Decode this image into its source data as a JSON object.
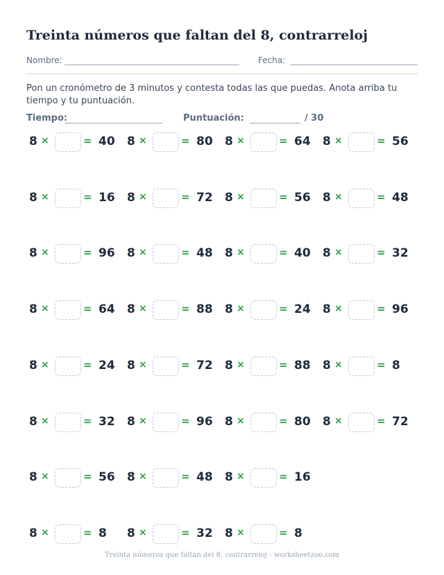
{
  "title": "Treinta números que faltan del 8, contrarreloj",
  "meta": {
    "name_label": "Nombre:",
    "date_label": "Fecha:"
  },
  "instructions": "Pon un cronómetro de 3 minutos y contesta todas las que puedas. Anota arriba tu tiempo y tu puntuación.",
  "score": {
    "time_label": "Tiempo:",
    "score_label": "Puntuación:",
    "total": "/ 30"
  },
  "factor": "8",
  "times_symbol": "×",
  "equals_symbol": "=",
  "rows": [
    [
      "40",
      "80",
      "64",
      "56"
    ],
    [
      "16",
      "72",
      "56",
      "48"
    ],
    [
      "96",
      "48",
      "40",
      "32"
    ],
    [
      "64",
      "88",
      "24",
      "96"
    ],
    [
      "24",
      "72",
      "88",
      "8"
    ],
    [
      "32",
      "96",
      "80",
      "72"
    ],
    [
      "56",
      "48",
      "16"
    ],
    [
      "8",
      "32",
      "8"
    ]
  ],
  "footer": "Treinta números que faltan del 8, contrarreloj - worksheetzoo.com"
}
